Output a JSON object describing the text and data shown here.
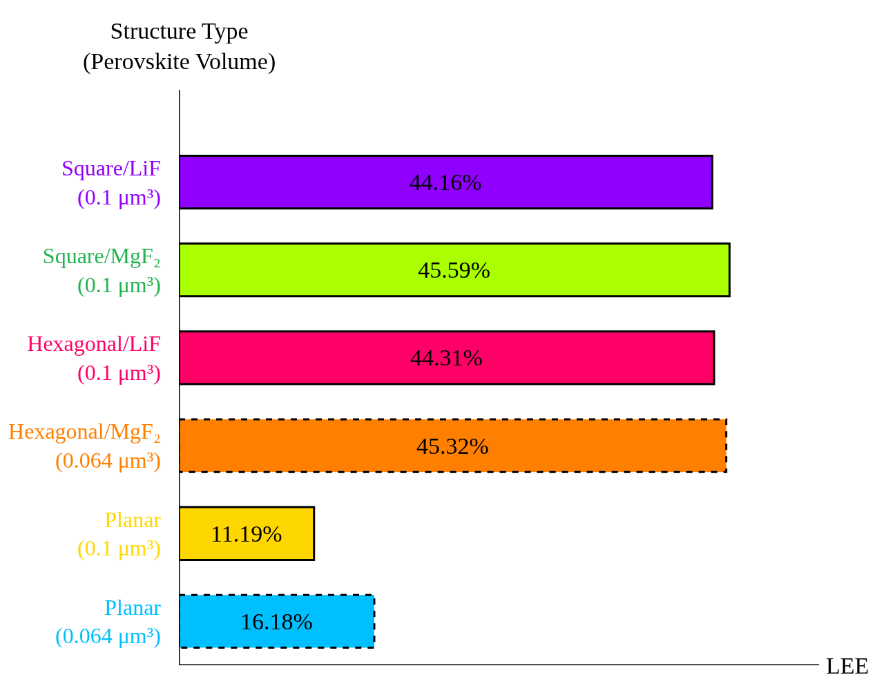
{
  "chart_data": {
    "type": "bar",
    "orientation": "horizontal",
    "ylabel": "Structure Type\n(Perovskite Volume)",
    "xlabel": "LEE",
    "categories": [
      "Square/LiF\n(0.1 μm³)",
      "Square/MgF₂\n(0.1 μm³)",
      "Hexagonal/LiF\n(0.1 μm³)",
      "Hexagonal/MgF₂\n(0.064 μm³)",
      "Planar\n(0.1 μm³)",
      "Planar\n(0.064 μm³)"
    ],
    "xlim": [
      0,
      53
    ],
    "tick_labels": "y",
    "series": [
      {
        "line_style": "solid",
        "colors": [
          "#8f00ff",
          "#aaff00",
          "#ff0066",
          null,
          "#ffd700",
          null
        ],
        "values": [
          44.16,
          45.59,
          44.31,
          null,
          11.19,
          null
        ],
        "value_labels": [
          "44.16%",
          "45.59%",
          "44.31%",
          null,
          "11.19%",
          null
        ]
      },
      {
        "line_style": "dashed",
        "colors": [
          null,
          null,
          null,
          "#ff8000",
          null,
          "#00bfff"
        ],
        "values": [
          null,
          null,
          null,
          45.32,
          null,
          16.18
        ],
        "value_labels": [
          null,
          null,
          null,
          "45.32%",
          null,
          "16.18%"
        ]
      }
    ]
  }
}
